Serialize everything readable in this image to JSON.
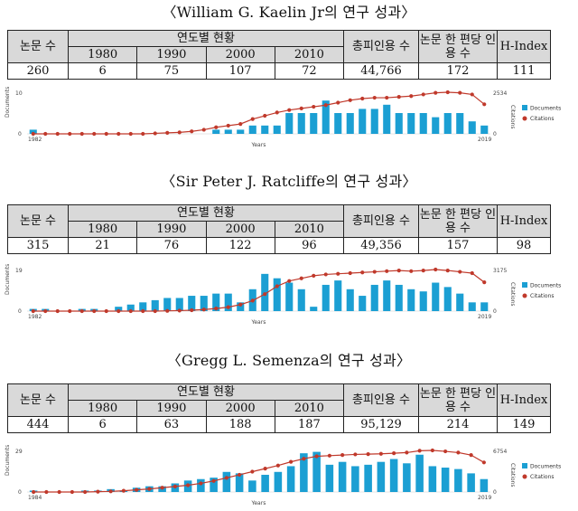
{
  "headers": {
    "papers": "논문 수",
    "yearly": "연도별 현황",
    "years": [
      "1980",
      "1990",
      "2000",
      "2010"
    ],
    "citations": "총피인용 수",
    "per_paper": "논문 한 편당 인용 수",
    "hindex": "H-Index"
  },
  "chart_labels": {
    "y_axis": "Documents",
    "y2_axis": "Citations",
    "x_axis": "Years",
    "legend_docs": "Documents",
    "legend_cits": "Citations"
  },
  "researchers": [
    {
      "title": "〈William G. Kaelin Jr의 연구 성과〉",
      "papers": "260",
      "years": [
        "6",
        "75",
        "107",
        "72"
      ],
      "citations": "44,766",
      "per_paper": "172",
      "hindex": "111",
      "chart": {
        "x_start": "1982",
        "x_end": "2019",
        "y_max": "10",
        "y_min": "0",
        "y2_max": "2534",
        "y2_min": "0"
      }
    },
    {
      "title": "〈Sir Peter J. Ratcliffe의 연구 성과〉",
      "papers": "315",
      "years": [
        "21",
        "76",
        "122",
        "96"
      ],
      "citations": "49,356",
      "per_paper": "157",
      "hindex": "98",
      "chart": {
        "x_start": "1982",
        "x_end": "2019",
        "y_max": "19",
        "y_min": "0",
        "y2_max": "3175",
        "y2_min": "0"
      }
    },
    {
      "title": "〈Gregg L. Semenza의 연구 성과〉",
      "papers": "444",
      "years": [
        "6",
        "63",
        "188",
        "187"
      ],
      "citations": "95,129",
      "per_paper": "214",
      "hindex": "149",
      "chart": {
        "x_start": "1984",
        "x_end": "2019",
        "y_max": "29",
        "y_min": "0",
        "y2_max": "6754",
        "y2_min": "0"
      }
    }
  ],
  "chart_data": [
    {
      "type": "bar",
      "x": [
        1982,
        1983,
        1984,
        1985,
        1986,
        1987,
        1988,
        1989,
        1990,
        1991,
        1992,
        1993,
        1994,
        1995,
        1996,
        1997,
        1998,
        1999,
        2000,
        2001,
        2002,
        2003,
        2004,
        2005,
        2006,
        2007,
        2008,
        2009,
        2010,
        2011,
        2012,
        2013,
        2014,
        2015,
        2016,
        2017,
        2018,
        2019
      ],
      "series": [
        {
          "name": "Documents",
          "values": [
            1,
            0,
            0,
            0,
            0,
            0,
            0,
            0,
            0,
            0,
            0,
            0,
            0,
            0,
            0,
            1,
            1,
            1,
            2,
            2,
            2,
            5,
            5,
            5,
            8,
            5,
            5,
            6,
            6,
            7,
            5,
            5,
            5,
            4,
            5,
            5,
            3,
            2
          ]
        },
        {
          "name": "Citations",
          "values": [
            0,
            0,
            0,
            0,
            0,
            0,
            0,
            0,
            0,
            0,
            30,
            60,
            90,
            150,
            250,
            400,
            500,
            600,
            900,
            1100,
            1300,
            1450,
            1550,
            1650,
            1750,
            1900,
            2050,
            2150,
            2200,
            2200,
            2250,
            2300,
            2400,
            2500,
            2534,
            2500,
            2400,
            1800
          ]
        }
      ],
      "ylim": [
        0,
        10
      ],
      "y2lim": [
        0,
        2534
      ]
    },
    {
      "type": "bar",
      "x": [
        1982,
        1983,
        1984,
        1985,
        1986,
        1987,
        1988,
        1989,
        1990,
        1991,
        1992,
        1993,
        1994,
        1995,
        1996,
        1997,
        1998,
        1999,
        2000,
        2001,
        2002,
        2003,
        2004,
        2005,
        2006,
        2007,
        2008,
        2009,
        2010,
        2011,
        2012,
        2013,
        2014,
        2015,
        2016,
        2017,
        2018,
        2019
      ],
      "series": [
        {
          "name": "Documents",
          "values": [
            1,
            1,
            0,
            0,
            1,
            1,
            0,
            2,
            3,
            4,
            5,
            6,
            6,
            7,
            7,
            8,
            8,
            4,
            10,
            17,
            15,
            13,
            10,
            2,
            12,
            14,
            10,
            7,
            12,
            14,
            12,
            10,
            9,
            13,
            11,
            8,
            4,
            4
          ]
        },
        {
          "name": "Citations",
          "values": [
            0,
            0,
            0,
            0,
            0,
            0,
            0,
            0,
            0,
            0,
            0,
            20,
            40,
            70,
            120,
            200,
            300,
            500,
            800,
            1300,
            1900,
            2300,
            2500,
            2700,
            2800,
            2850,
            2900,
            2950,
            3000,
            3050,
            3100,
            3050,
            3100,
            3175,
            3100,
            3000,
            2900,
            2200
          ]
        }
      ],
      "ylim": [
        0,
        19
      ],
      "y2lim": [
        0,
        3175
      ]
    },
    {
      "type": "bar",
      "x": [
        1984,
        1985,
        1986,
        1987,
        1988,
        1989,
        1990,
        1991,
        1992,
        1993,
        1994,
        1995,
        1996,
        1997,
        1998,
        1999,
        2000,
        2001,
        2002,
        2003,
        2004,
        2005,
        2006,
        2007,
        2008,
        2009,
        2010,
        2011,
        2012,
        2013,
        2014,
        2015,
        2016,
        2017,
        2018,
        2019
      ],
      "series": [
        {
          "name": "Documents",
          "values": [
            1,
            0,
            0,
            0,
            1,
            1,
            2,
            1,
            3,
            4,
            4,
            6,
            8,
            9,
            10,
            14,
            13,
            8,
            12,
            14,
            18,
            27,
            28,
            19,
            21,
            18,
            19,
            21,
            23,
            20,
            26,
            18,
            17,
            16,
            13,
            9
          ]
        },
        {
          "name": "Citations",
          "values": [
            0,
            0,
            0,
            0,
            0,
            50,
            100,
            200,
            350,
            500,
            700,
            900,
            1100,
            1400,
            1800,
            2300,
            2800,
            3300,
            3800,
            4300,
            4900,
            5400,
            5800,
            5900,
            6000,
            6100,
            6150,
            6200,
            6300,
            6400,
            6700,
            6754,
            6600,
            6400,
            6000,
            4800
          ]
        }
      ],
      "ylim": [
        0,
        29
      ],
      "y2lim": [
        0,
        6754
      ]
    }
  ],
  "colors": {
    "bar": "#1b9fd3",
    "line": "#c0392b",
    "header_bg": "#d9d9d9"
  }
}
